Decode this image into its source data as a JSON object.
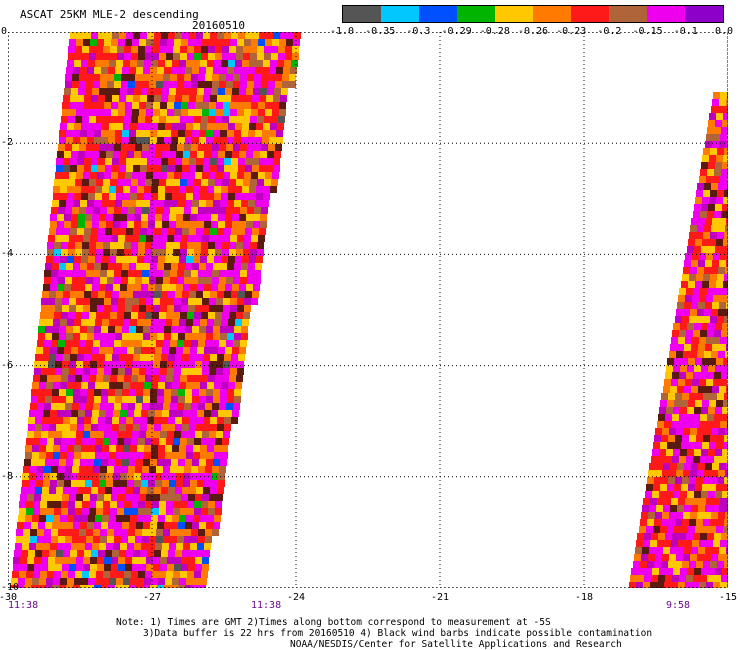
{
  "header": {
    "title": "ASCAT 25KM MLE-2 descending",
    "date": "20160510"
  },
  "colorbar": {
    "colors": [
      "#555555",
      "#00c8ff",
      "#0050ff",
      "#00b400",
      "#ffc800",
      "#ff7a00",
      "#ff1a1a",
      "#b0643a",
      "#ee00ee",
      "#8c00c8"
    ],
    "labels": [
      "-1.0",
      "-0.35",
      "-0.3",
      "-0.29",
      "-0.28",
      "-0.26",
      "-0.23",
      "-0.2",
      "-0.15",
      "-0.1",
      "0.0"
    ]
  },
  "map": {
    "lon_range": [
      -30,
      -15
    ],
    "lat_range": [
      -10,
      0
    ],
    "x_ticks": [
      "-30",
      "-27",
      "-24",
      "-21",
      "-18",
      "-15"
    ],
    "y_ticks": [
      "0",
      "-2",
      "-4",
      "-6",
      "-8",
      "-10"
    ],
    "time_labels": [
      "11:38",
      "11:38",
      "9:58"
    ]
  },
  "notes": {
    "line1": "Note: 1) Times are GMT 2)Times along bottom correspond to measurement at -5S",
    "line2": "3)Data buffer is 22 hrs from 20160510 4) Black wind barbs indicate possible contamination",
    "line3": "NOAA/NESDIS/Center for Satellite Applications and Research"
  }
}
